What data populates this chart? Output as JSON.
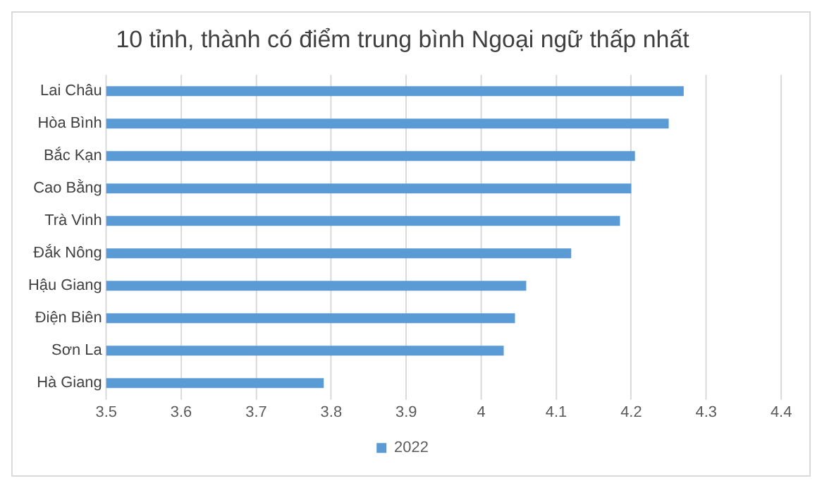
{
  "chart_data": {
    "type": "bar",
    "orientation": "horizontal",
    "title": "10 tỉnh, thành có điểm trung bình Ngoại ngữ thấp nhất",
    "categories": [
      "Lai Châu",
      "Hòa Bình",
      "Bắc Kạn",
      "Cao Bằng",
      "Trà Vinh",
      "Đắk Nông",
      "Hậu Giang",
      "Điện Biên",
      "Sơn La",
      "Hà Giang"
    ],
    "series": [
      {
        "name": "2022",
        "color": "#5b9bd5",
        "values": [
          4.27,
          4.25,
          4.205,
          4.2,
          4.185,
          4.12,
          4.06,
          4.045,
          4.03,
          3.79
        ]
      }
    ],
    "xlim": [
      3.5,
      4.4
    ],
    "xticks": [
      3.5,
      3.6,
      3.7,
      3.8,
      3.9,
      4,
      4.1,
      4.2,
      4.3,
      4.4
    ],
    "grid": "x",
    "legend": "bottom"
  }
}
